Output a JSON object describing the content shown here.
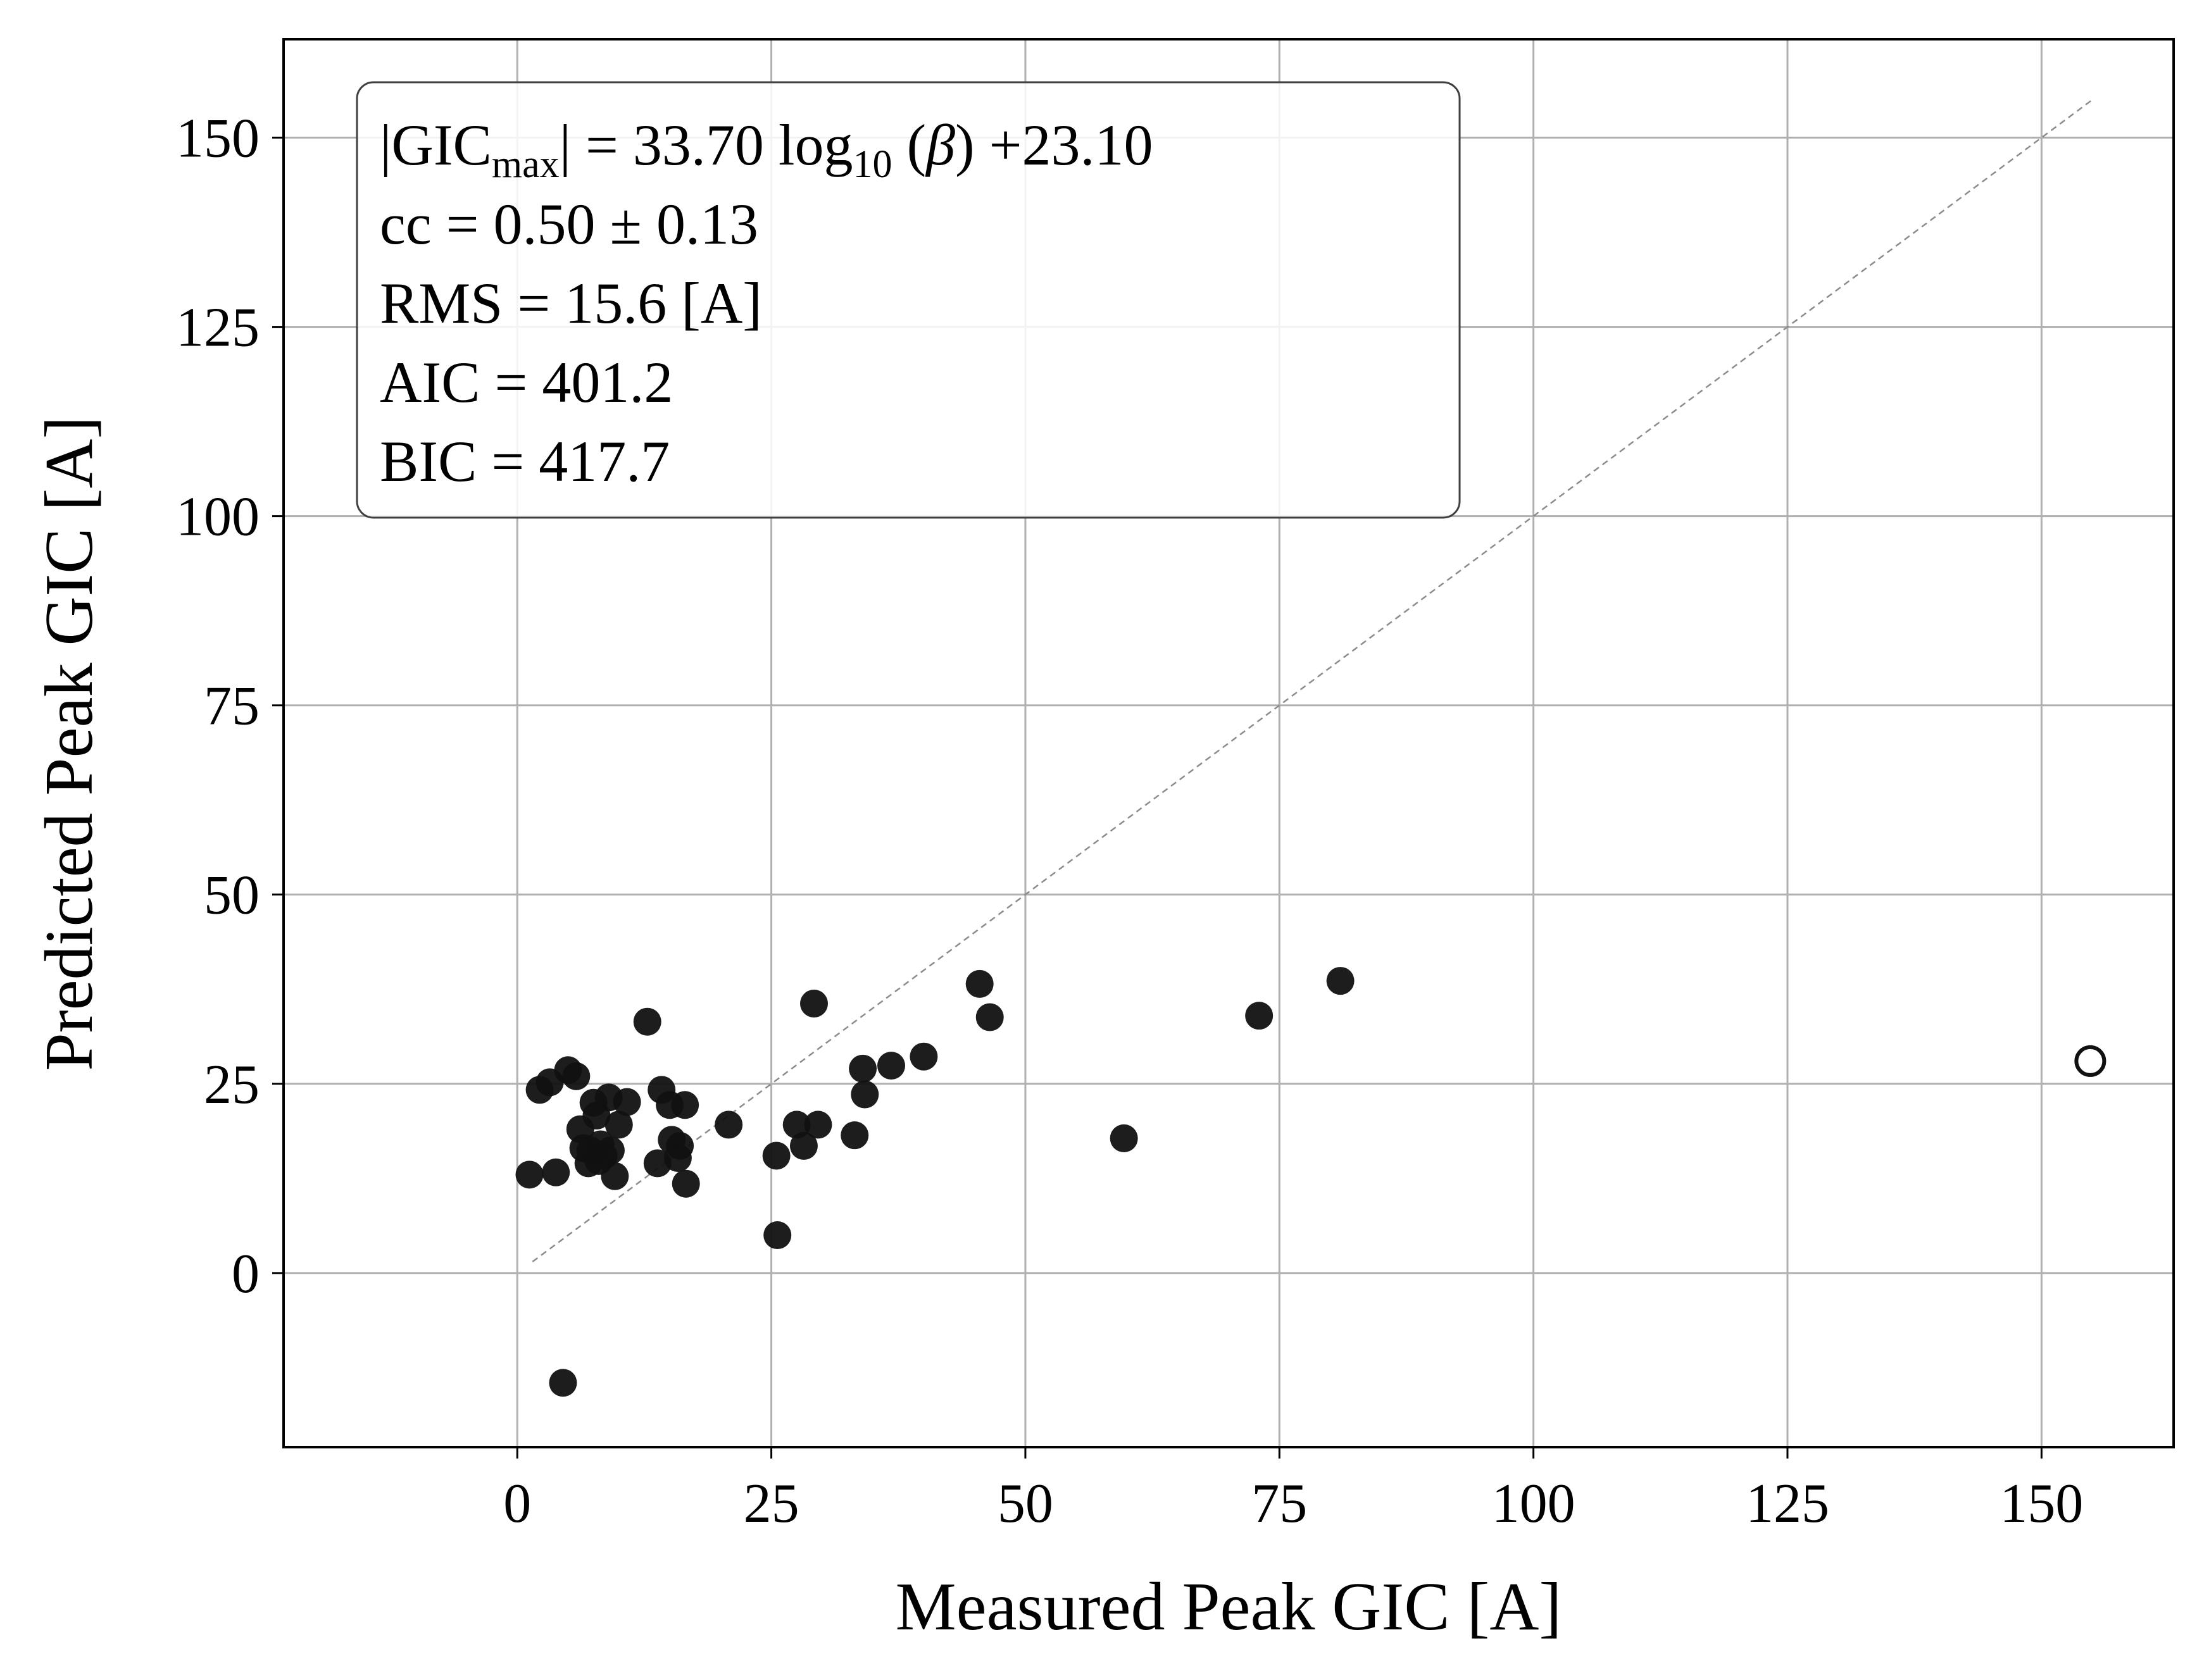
{
  "chart_data": {
    "type": "scatter",
    "title": "",
    "xlabel": "Measured Peak GIC [A]",
    "ylabel": "Predicted Peak GIC [A]",
    "xlim": [
      -23,
      163
    ],
    "ylim": [
      -23,
      163
    ],
    "xticks": [
      0,
      25,
      50,
      75,
      100,
      125,
      150
    ],
    "yticks": [
      0,
      25,
      50,
      75,
      100,
      125,
      150
    ],
    "grid": true,
    "reference_line": {
      "style": "dashed",
      "color": "#8c8c8c",
      "from": [
        1.5,
        1.5
      ],
      "to": [
        155,
        155
      ]
    },
    "annotation": {
      "position": "top-left",
      "line1": {
        "bar_open": "|",
        "gic": "GIC",
        "gic_sub": "max",
        "bar_close": "|",
        "middle": " = 33.70 log",
        "log_sub": "10",
        "beta_open": " (",
        "beta": "β",
        "tail": ") +23.10"
      },
      "line2": "cc = 0.50 ± 0.13",
      "line3": "RMS = 15.6 [A]",
      "line4": "AIC = 401.2",
      "line5": "BIC = 417.7"
    },
    "series": [
      {
        "marker": "filled-circle",
        "color": "#111111",
        "points": [
          [
            1.2,
            13.0
          ],
          [
            2.2,
            24.2
          ],
          [
            3.2,
            25.2
          ],
          [
            3.8,
            13.3
          ],
          [
            4.5,
            -14.5
          ],
          [
            5.0,
            26.8
          ],
          [
            5.8,
            26.0
          ],
          [
            6.2,
            19.0
          ],
          [
            6.5,
            16.5
          ],
          [
            7.0,
            14.5
          ],
          [
            7.2,
            16.2
          ],
          [
            7.5,
            22.5
          ],
          [
            7.8,
            20.8
          ],
          [
            8.0,
            14.8
          ],
          [
            8.2,
            17.0
          ],
          [
            8.5,
            15.5
          ],
          [
            9.0,
            23.2
          ],
          [
            9.2,
            16.2
          ],
          [
            9.6,
            12.8
          ],
          [
            10.0,
            19.6
          ],
          [
            10.8,
            22.6
          ],
          [
            12.8,
            33.2
          ],
          [
            13.8,
            14.5
          ],
          [
            14.2,
            24.2
          ],
          [
            15.0,
            22.2
          ],
          [
            15.2,
            17.6
          ],
          [
            15.8,
            15.2
          ],
          [
            16.0,
            16.8
          ],
          [
            16.5,
            22.2
          ],
          [
            16.6,
            11.8
          ],
          [
            20.8,
            19.6
          ],
          [
            25.5,
            15.5
          ],
          [
            25.6,
            5.0
          ],
          [
            27.5,
            19.6
          ],
          [
            28.2,
            16.8
          ],
          [
            29.2,
            35.6
          ],
          [
            29.6,
            19.6
          ],
          [
            33.2,
            18.2
          ],
          [
            34.0,
            27.0
          ],
          [
            34.2,
            23.6
          ],
          [
            36.8,
            27.4
          ],
          [
            40.0,
            28.6
          ],
          [
            45.5,
            38.2
          ],
          [
            46.5,
            33.8
          ],
          [
            59.7,
            17.8
          ],
          [
            73.0,
            34.0
          ],
          [
            81.0,
            38.6
          ]
        ]
      },
      {
        "marker": "open-circle",
        "color": "#111111",
        "points": [
          [
            154.8,
            28.0
          ]
        ]
      }
    ]
  }
}
